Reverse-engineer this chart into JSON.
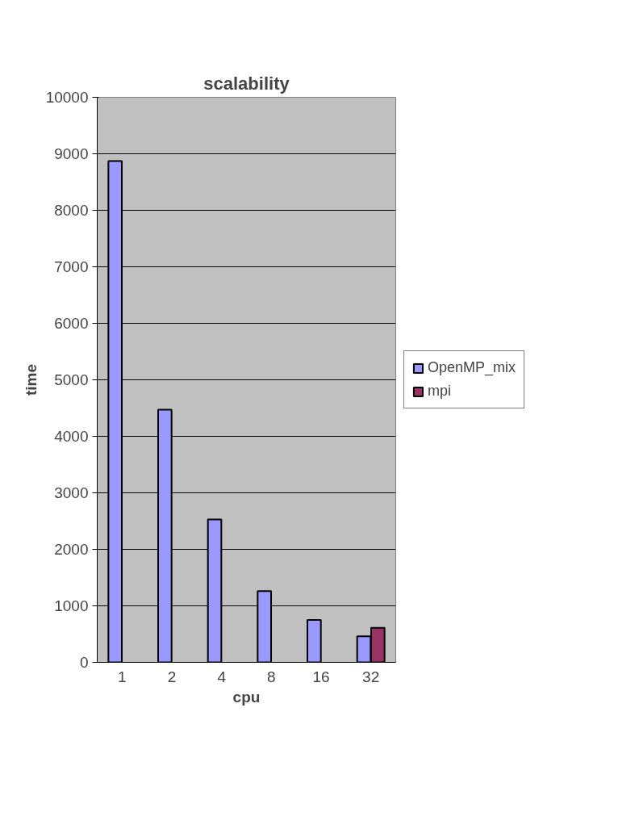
{
  "chart_data": {
    "type": "bar",
    "title": "scalability",
    "xlabel": "cpu",
    "ylabel": "time",
    "categories": [
      "1",
      "2",
      "4",
      "8",
      "16",
      "32"
    ],
    "series": [
      {
        "name": "OpenMP_mix",
        "color": "#9999ff",
        "values": [
          8870,
          4470,
          2530,
          1260,
          750,
          460
        ]
      },
      {
        "name": "mpi",
        "color": "#993366",
        "values": [
          null,
          null,
          null,
          null,
          null,
          610
        ]
      }
    ],
    "ylim": [
      0,
      10000
    ],
    "yticks": [
      0,
      1000,
      2000,
      3000,
      4000,
      5000,
      6000,
      7000,
      8000,
      9000,
      10000
    ],
    "grid": "y",
    "legend": "right"
  }
}
